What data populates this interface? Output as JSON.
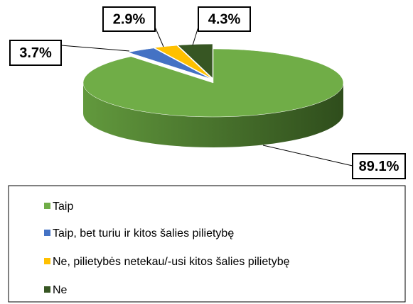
{
  "chart_data": {
    "type": "pie",
    "categories": [
      "Taip",
      "Taip, bet turiu ir kitos šalies pilietybę",
      "Ne, pilietybės netekau/-usi kitos šalies pilietybę",
      "Ne"
    ],
    "values": [
      89.1,
      3.7,
      2.9,
      4.3
    ],
    "value_labels": [
      "89.1%",
      "3.7%",
      "2.9%",
      "4.3%"
    ],
    "colors": [
      "#70ad47",
      "#4472c4",
      "#ffc000",
      "#375623"
    ],
    "legend": "bottom"
  }
}
